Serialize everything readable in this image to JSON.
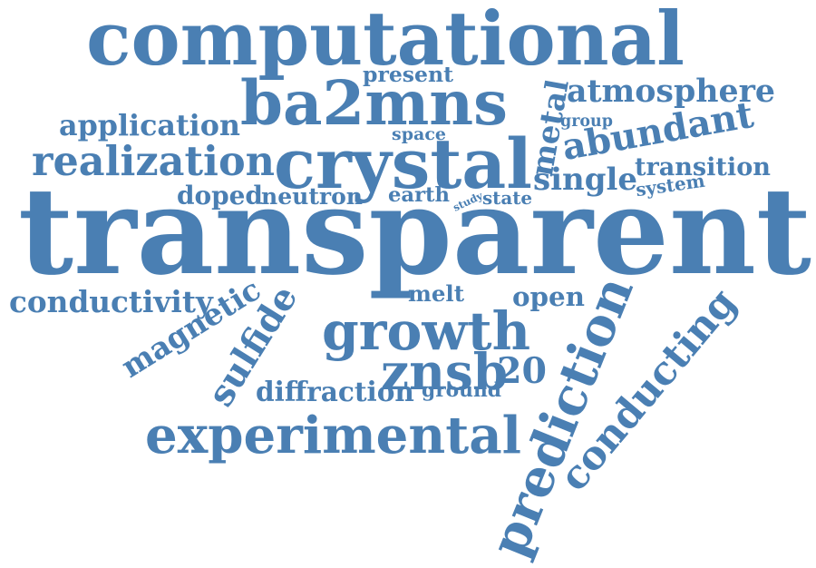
{
  "color": "#4a7fb3",
  "words": [
    "computational",
    "ba2mns",
    "atmosphere",
    "present",
    "metal",
    "application",
    "group",
    "abundant",
    "space",
    "crystal",
    "realization",
    "transition",
    "single",
    "system",
    "doped",
    "neutron",
    "earth",
    "study",
    "state",
    "transparent",
    "conductivity",
    "melt",
    "open",
    "magnetic",
    "sulfide",
    "growth",
    "prediction",
    "conducting",
    "znsb",
    "20",
    "diffraction",
    "ground",
    "experimental"
  ]
}
